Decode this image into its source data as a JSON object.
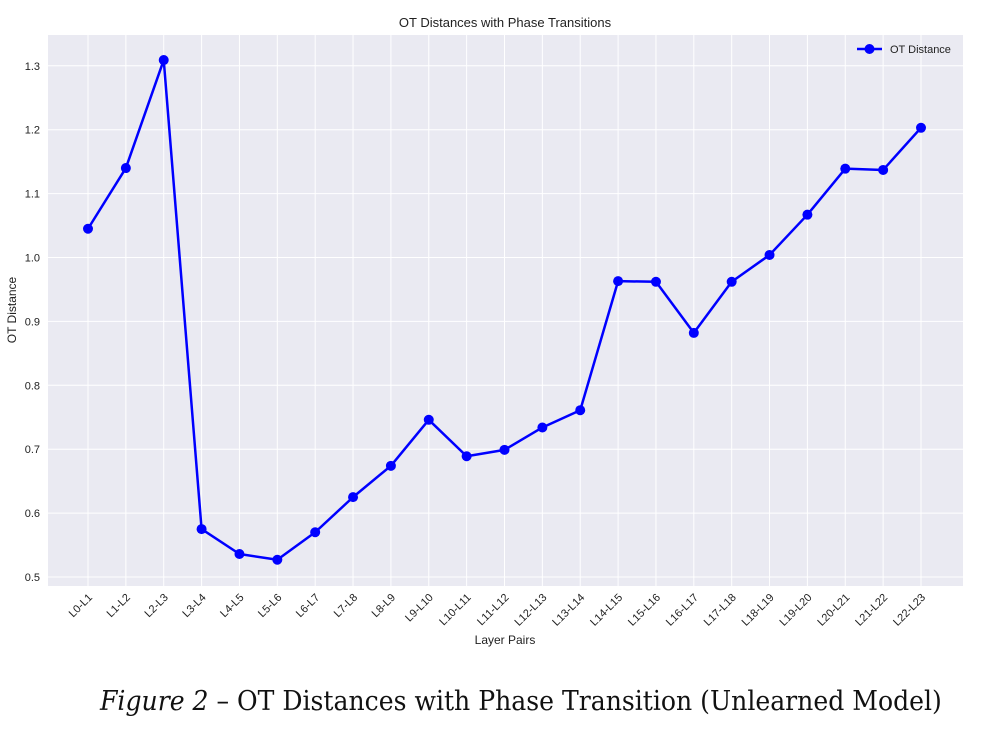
{
  "chart_data": {
    "type": "line",
    "title": "OT Distances with Phase Transitions",
    "xlabel": "Layer Pairs",
    "ylabel": "OT Distance",
    "categories": [
      "L0-L1",
      "L1-L2",
      "L2-L3",
      "L3-L4",
      "L4-L5",
      "L5-L6",
      "L6-L7",
      "L7-L8",
      "L8-L9",
      "L9-L10",
      "L10-L11",
      "L11-L12",
      "L12-L13",
      "L13-L14",
      "L14-L15",
      "L15-L16",
      "L16-L17",
      "L17-L18",
      "L18-L19",
      "L19-L20",
      "L20-L21",
      "L21-L22",
      "L22-L23"
    ],
    "series": [
      {
        "name": "OT Distance",
        "color": "#0000ff",
        "marker": "circle",
        "values": [
          1.045,
          1.14,
          1.309,
          0.575,
          0.536,
          0.527,
          0.57,
          0.625,
          0.674,
          0.746,
          0.689,
          0.699,
          0.734,
          0.761,
          0.963,
          0.962,
          0.882,
          0.962,
          1.004,
          1.067,
          1.139,
          1.137,
          1.203
        ]
      }
    ],
    "ylim": [
      0.488,
      1.348
    ],
    "yticks": [
      0.5,
      0.6,
      0.7,
      0.8,
      0.9,
      1.0,
      1.1,
      1.2,
      1.3
    ],
    "ytick_labels": [
      "0.5",
      "0.6",
      "0.7",
      "0.8",
      "0.9",
      "1.0",
      "1.1",
      "1.2",
      "1.3"
    ],
    "grid": true,
    "legend_position": "upper right",
    "background": "#eaeaf2"
  },
  "caption": {
    "figure_label": "Figure 2",
    "separator": " – ",
    "text": "OT Distances with Phase Transition (Unlearned Model)"
  }
}
